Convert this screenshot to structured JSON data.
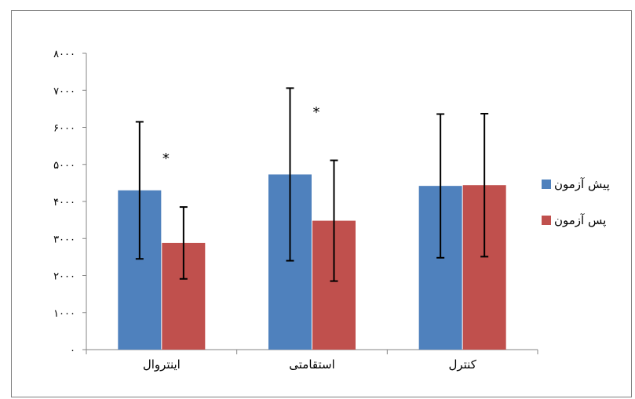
{
  "chart_data": {
    "type": "bar",
    "categories": [
      "اینتروال",
      "استقامتی",
      "کنترل"
    ],
    "series": [
      {
        "name": "پیش آزمون",
        "color": "#4f81bd",
        "values": [
          4300,
          4730,
          4420
        ],
        "errors": [
          1850,
          2330,
          1940
        ]
      },
      {
        "name": "پس آزمون",
        "color": "#c0504d",
        "values": [
          2880,
          3480,
          4440
        ],
        "errors": [
          970,
          1630,
          1930
        ]
      }
    ],
    "yticks": [
      0,
      1000,
      2000,
      3000,
      4000,
      5000,
      6000,
      7000,
      8000
    ],
    "ytick_labels": [
      "۰",
      "۱۰۰۰",
      "۲۰۰۰",
      "۳۰۰۰",
      "۴۰۰۰",
      "۵۰۰۰",
      "۶۰۰۰",
      "۷۰۰۰",
      "۸۰۰۰"
    ],
    "ylim": [
      0,
      8000
    ],
    "grid": false,
    "legend_position": "right",
    "annotations": [
      {
        "category": 0,
        "text": "*",
        "y": 5250
      },
      {
        "category": 1,
        "text": "*",
        "y": 6500
      }
    ]
  }
}
